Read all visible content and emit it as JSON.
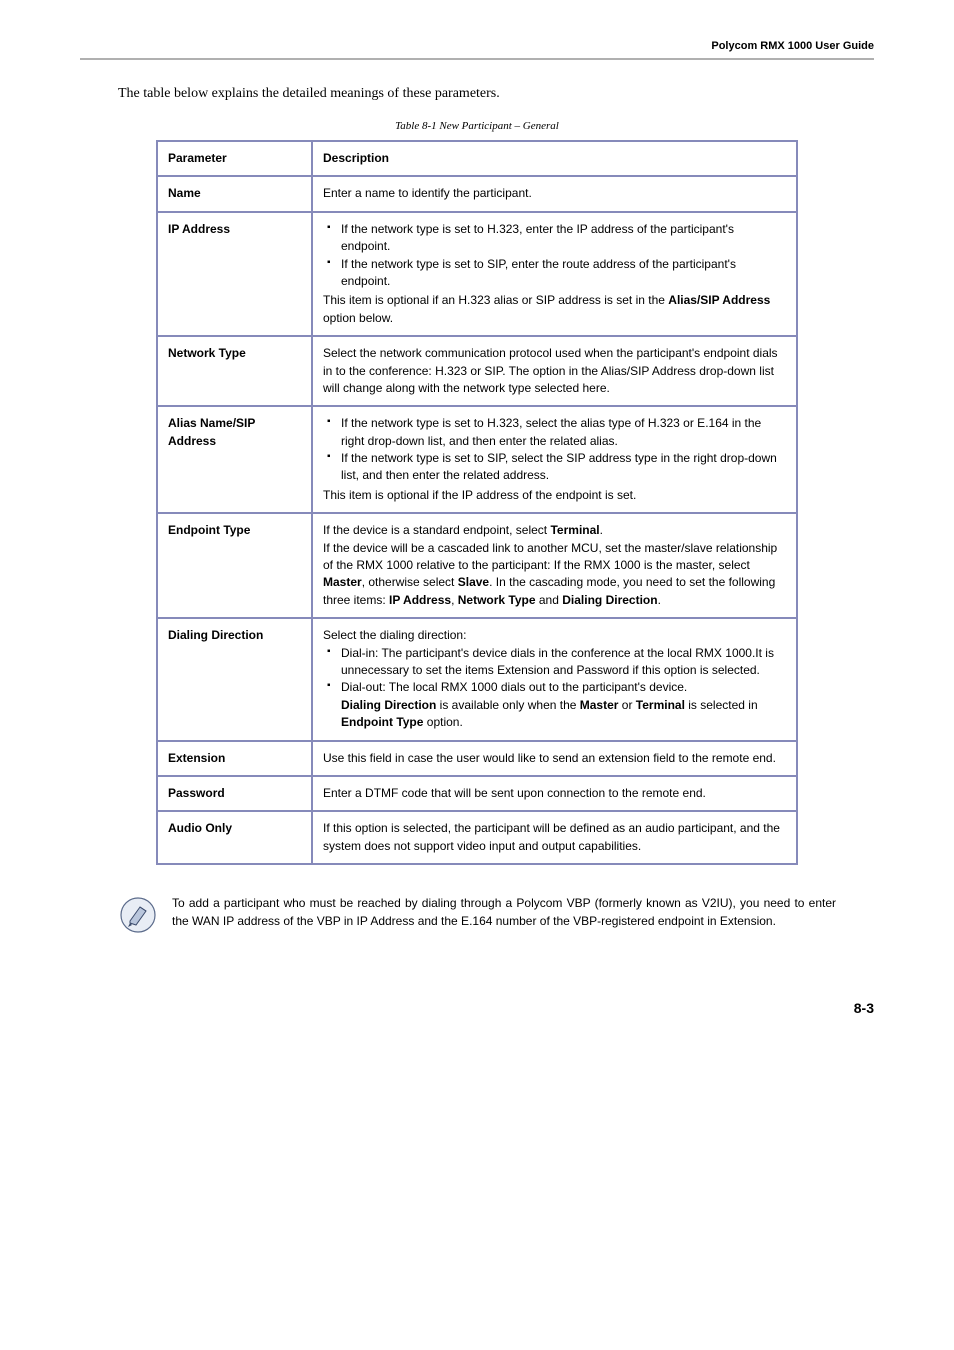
{
  "header": {
    "title": "Polycom RMX 1000 User Guide"
  },
  "intro": "The table below explains the detailed meanings of these parameters.",
  "table_caption": "Table 8-1   New Participant – General",
  "table": {
    "head": [
      "Parameter",
      "Description"
    ],
    "rows": [
      {
        "param": "Name",
        "html": "<span data-name=\"cell-text\" data-interactable=\"false\">Enter a name to identify the participant.</span>"
      },
      {
        "param": "IP Address",
        "html": "<ul class=\"cell-list\" data-name=\"bullet-list\" data-interactable=\"false\"><li data-name=\"list-item\" data-interactable=\"false\">If the network type is set to H.323, enter the IP address of the participant's endpoint.</li><li data-name=\"list-item\" data-interactable=\"false\">If the network type is set to SIP, enter the route address of the participant's endpoint.</li></ul><div class=\"cell-para\" data-name=\"cell-text\" data-interactable=\"false\">This item is optional if an H.323 alias or SIP address is set in the <b>Alias/SIP Address</b> option below.</div>"
      },
      {
        "param": "Network Type",
        "html": "<span data-name=\"cell-text\" data-interactable=\"false\">Select the network communication protocol used when the participant's endpoint dials in to the conference: H.323 or SIP. The option in the Alias/SIP Address drop-down list will change along with the network type selected here.</span>"
      },
      {
        "param": "Alias Name/SIP Address",
        "html": "<ul class=\"cell-list\" data-name=\"bullet-list\" data-interactable=\"false\"><li data-name=\"list-item\" data-interactable=\"false\">If the network type is set to H.323, select the alias type of H.323 or E.164 in the right drop-down list, and then enter the related alias.</li><li data-name=\"list-item\" data-interactable=\"false\">If the network type is set to SIP, select the SIP address type in the right drop-down list, and then enter the related address.</li></ul><div class=\"cell-para\" data-name=\"cell-text\" data-interactable=\"false\">This item is optional if the IP address of the endpoint is set.</div>"
      },
      {
        "param": "Endpoint Type",
        "html": "<span data-name=\"cell-text\" data-interactable=\"false\">If the device is a standard endpoint, select <b>Terminal</b>.<br>If the device will be a cascaded link to another MCU, set the master/slave relationship of the RMX 1000 relative to the participant: If the RMX 1000 is the master, select <b>Master</b>, otherwise select <b>Slave</b>. In the cascading mode, you need to set the following three items: <b>IP Address</b>, <b>Network Type</b> and <b>Dialing Direction</b>.</span>"
      },
      {
        "param": "Dialing Direction",
        "html": "<div data-name=\"cell-text\" data-interactable=\"false\">Select the dialing direction:</div><ul class=\"cell-list\" data-name=\"bullet-list\" data-interactable=\"false\"><li data-name=\"list-item\" data-interactable=\"false\">Dial-in: The participant's device dials in the conference at the local RMX 1000.It is unnecessary to set the items Extension and Password if this option is selected.</li><li data-name=\"list-item\" data-interactable=\"false\">Dial-out: The local RMX 1000 dials out to the participant's device.<br><b>Dialing Direction</b> is available only when the <b>Master</b> or <b>Terminal</b> is selected in <b>Endpoint Type</b> option.</li></ul>"
      },
      {
        "param": "Extension",
        "html": "<span data-name=\"cell-text\" data-interactable=\"false\">Use this field in case the user would like to send an extension field to the remote end.</span>"
      },
      {
        "param": "Password",
        "html": "<span data-name=\"cell-text\" data-interactable=\"false\">Enter a DTMF code that will be sent upon connection to the remote end.</span>"
      },
      {
        "param": "Audio Only",
        "html": "<span data-name=\"cell-text\" data-interactable=\"false\">If this option is selected, the participant will be defined as an audio participant, and the system does not support video input and output capabilities.</span>"
      }
    ]
  },
  "note": "To add a participant who must be reached by dialing through a Polycom VBP (formerly known as V2IU), you need to enter the WAN IP address of the VBP in IP Address and the E.164 number of the VBP-registered endpoint in Extension.",
  "page_number": "8-3",
  "colors": {
    "border": "#868aba",
    "rule": "#b0b0b0",
    "note_icon_fill": "#b9c6dc",
    "note_icon_stroke": "#3a4a6b"
  }
}
